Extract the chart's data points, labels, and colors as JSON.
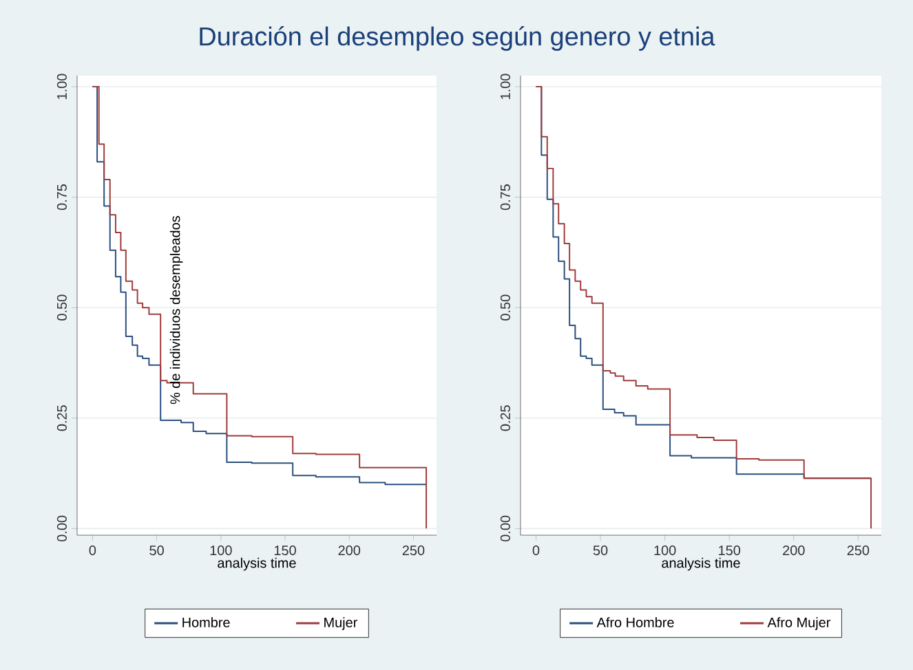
{
  "chart_data": [
    {
      "type": "step",
      "title": "Duración el desempleo según genero y etnia",
      "xlabel": "analysis time",
      "ylabel": "% de individuos desempleados",
      "xlim": [
        -12,
        268
      ],
      "ylim": [
        -0.015,
        1.025
      ],
      "xticks": [
        0,
        50,
        100,
        150,
        200,
        250
      ],
      "yticks": [
        {
          "value": 0,
          "label": "0.00"
        },
        {
          "value": 0.25,
          "label": "0.25"
        },
        {
          "value": 0.5,
          "label": "0.50"
        },
        {
          "value": 0.75,
          "label": "0.75"
        },
        {
          "value": 1,
          "label": "1.00"
        }
      ],
      "grid": "y",
      "legend": "bottom",
      "series": [
        {
          "name": "Hombre",
          "color": "#2b4f7e",
          "x": [
            0,
            3.6,
            9,
            13.6,
            18,
            22,
            26,
            31,
            35,
            39,
            44,
            53,
            69,
            78.5,
            88.5,
            104.6,
            124,
            156,
            174,
            208,
            228,
            260
          ],
          "values": [
            1,
            0.83,
            0.73,
            0.63,
            0.57,
            0.535,
            0.435,
            0.415,
            0.39,
            0.385,
            0.37,
            0.245,
            0.24,
            0.22,
            0.215,
            0.15,
            0.148,
            0.12,
            0.117,
            0.104,
            0.1,
            0.1
          ]
        },
        {
          "name": "Mujer",
          "color": "#a03c3c",
          "x": [
            0,
            5,
            9,
            13.6,
            18,
            22,
            26,
            31,
            35,
            39,
            44,
            53,
            58,
            78.5,
            104.6,
            124,
            156,
            174,
            208,
            260
          ],
          "values": [
            1,
            0.87,
            0.79,
            0.71,
            0.67,
            0.63,
            0.56,
            0.54,
            0.51,
            0.5,
            0.485,
            0.335,
            0.33,
            0.305,
            0.21,
            0.208,
            0.17,
            0.168,
            0.138,
            0
          ]
        }
      ]
    },
    {
      "type": "step",
      "xlabel": "analysis time",
      "xlim": [
        -12,
        268
      ],
      "ylim": [
        -0.015,
        1.025
      ],
      "xticks": [
        0,
        50,
        100,
        150,
        200,
        250
      ],
      "yticks": [
        {
          "value": 0,
          "label": "0.00"
        },
        {
          "value": 0.25,
          "label": "0.25"
        },
        {
          "value": 0.5,
          "label": "0.50"
        },
        {
          "value": 0.75,
          "label": "0.75"
        },
        {
          "value": 1,
          "label": "1.00"
        }
      ],
      "grid": "y",
      "legend": "bottom",
      "series": [
        {
          "name": "Afro Hombre",
          "color": "#2b4f7e",
          "x": [
            0,
            4.2,
            8.7,
            13.3,
            17.5,
            22,
            26,
            30.4,
            34.6,
            39,
            43.4,
            52,
            61,
            68,
            77.6,
            104,
            120.6,
            155.6,
            208,
            260
          ],
          "values": [
            1,
            0.845,
            0.745,
            0.66,
            0.605,
            0.565,
            0.46,
            0.43,
            0.39,
            0.385,
            0.37,
            0.27,
            0.262,
            0.255,
            0.235,
            0.165,
            0.16,
            0.123,
            0.114,
            0.114
          ]
        },
        {
          "name": "Afro Mujer",
          "color": "#a03c3c",
          "x": [
            0,
            4.2,
            8.7,
            13.3,
            17.5,
            22,
            26,
            30.4,
            34.6,
            39,
            43.4,
            52,
            57.7,
            61.5,
            68,
            77.6,
            86.7,
            104,
            125,
            138,
            155.6,
            173,
            208,
            260
          ],
          "values": [
            1,
            0.887,
            0.815,
            0.735,
            0.69,
            0.645,
            0.585,
            0.56,
            0.54,
            0.525,
            0.51,
            0.357,
            0.352,
            0.345,
            0.335,
            0.323,
            0.316,
            0.212,
            0.206,
            0.2,
            0.158,
            0.155,
            0.114,
            0
          ]
        }
      ]
    }
  ]
}
